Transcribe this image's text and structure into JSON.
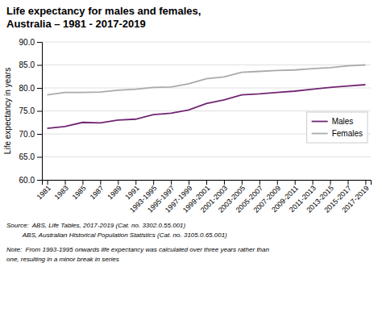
{
  "chart_data": {
    "type": "line",
    "title": "Life expectancy for males and females,",
    "subtitle": "Australia – 1981 - 2017-2019",
    "y_label": "Life expectancy in years",
    "categories": [
      "1981",
      "1983",
      "1985",
      "1987",
      "1989",
      "1991",
      "1993-1995",
      "1995-1997",
      "1997-1999",
      "1999-2001",
      "2001-2003",
      "2003-2005",
      "2005-2007",
      "2007-2009",
      "2009-2011",
      "2011-2013",
      "2013-2015",
      "2015-2017",
      "2017-2019"
    ],
    "series": [
      {
        "name": "Males",
        "color": "#722672",
        "values": [
          71.2,
          71.6,
          72.5,
          72.4,
          73.0,
          73.2,
          74.2,
          74.5,
          75.2,
          76.6,
          77.4,
          78.5,
          78.7,
          79.0,
          79.3,
          79.7,
          80.1,
          80.4,
          80.7
        ]
      },
      {
        "name": "Females",
        "color": "#aaaaaa",
        "values": [
          78.5,
          79.0,
          79.0,
          79.1,
          79.5,
          79.7,
          80.1,
          80.2,
          80.9,
          82.0,
          82.4,
          83.4,
          83.6,
          83.8,
          83.9,
          84.2,
          84.4,
          84.8,
          85.0
        ]
      }
    ],
    "ylim": [
      60.0,
      90.0
    ],
    "yticks": [
      {
        "value": 60.0,
        "label": "60.0"
      },
      {
        "value": 65.0,
        "label": "65.0"
      },
      {
        "value": 70.0,
        "label": "70.0"
      },
      {
        "value": 75.0,
        "label": "75.0"
      },
      {
        "value": 80.0,
        "label": "80.0"
      },
      {
        "value": 85.0,
        "label": "85.0"
      },
      {
        "value": 90.0,
        "label": "90.0"
      }
    ],
    "grid": true,
    "legend": "right",
    "annotations": [
      "Source:  ABS, Life Tables, 2017-2019 (Cat. no. 3302.0.55.001)",
      "         ABS, Australian Historical Population Statistics (Cat. no. 3105.0.65.001)",
      "Note:  From 1993-1995 onwards life expectancy was calculated over three years rather than\none, resulting in a minor break in series"
    ]
  }
}
